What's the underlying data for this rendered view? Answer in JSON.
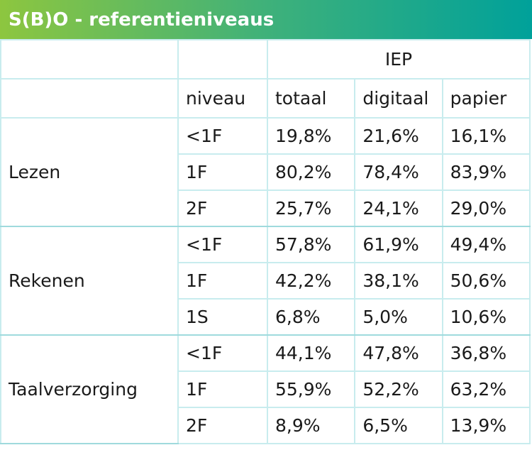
{
  "title": "S(B)O - referentieniveaus",
  "header": {
    "group": "IEP",
    "level": "niveau",
    "columns": [
      "totaal",
      "digitaal",
      "papier"
    ]
  },
  "groups": [
    {
      "name": "Lezen",
      "rows": [
        {
          "level": "<1F",
          "totaal": "19,8%",
          "digitaal": "21,6%",
          "papier": "16,1%"
        },
        {
          "level": "1F",
          "totaal": "80,2%",
          "digitaal": "78,4%",
          "papier": "83,9%"
        },
        {
          "level": "2F",
          "totaal": "25,7%",
          "digitaal": "24,1%",
          "papier": "29,0%"
        }
      ]
    },
    {
      "name": "Rekenen",
      "rows": [
        {
          "level": "<1F",
          "totaal": "57,8%",
          "digitaal": "61,9%",
          "papier": "49,4%"
        },
        {
          "level": "1F",
          "totaal": "42,2%",
          "digitaal": "38,1%",
          "papier": "50,6%"
        },
        {
          "level": "1S",
          "totaal": "6,8%",
          "digitaal": "5,0%",
          "papier": "10,6%"
        }
      ]
    },
    {
      "name": "Taalverzorging",
      "rows": [
        {
          "level": "<1F",
          "totaal": "44,1%",
          "digitaal": "47,8%",
          "papier": "36,8%"
        },
        {
          "level": "1F",
          "totaal": "55,9%",
          "digitaal": "52,2%",
          "papier": "63,2%"
        },
        {
          "level": "2F",
          "totaal": "8,9%",
          "digitaal": "6,5%",
          "papier": "13,9%"
        }
      ]
    }
  ]
}
